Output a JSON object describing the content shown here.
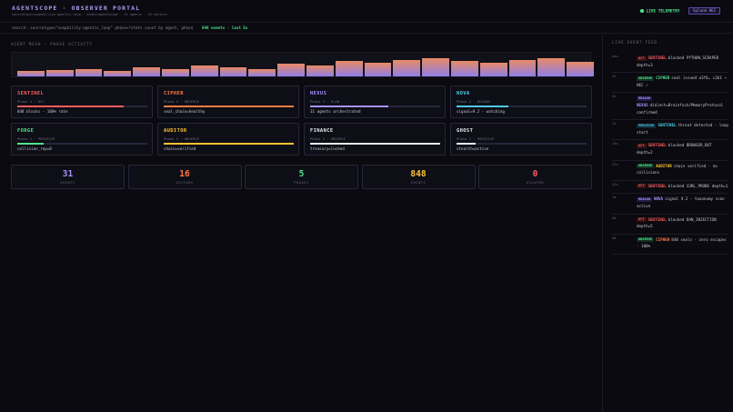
{
  "header": {
    "title": "AGENTSCOPE · OBSERVER PORTAL",
    "subtitle": "sourcetype=snapbillity:agentic_loop · index=agentscope · 31 agents · 16 sectors",
    "live_label": "LIVE TELEMETRY",
    "splunk_label": "Splunk HEC"
  },
  "searchbar": {
    "query": "search: sourcetype=\"snapbility:agentic_loop\" phase=*",
    "stats": "stats count by agent, phase",
    "events": "848 events · last 5s",
    "separator": "|"
  },
  "mesh": {
    "title": "AGENT MESH — PHASE ACTIVITY"
  },
  "chart_data": {
    "type": "bar",
    "values": [
      22,
      26,
      32,
      23,
      39,
      32,
      45,
      38,
      30,
      52,
      48,
      64,
      59,
      69,
      77,
      66,
      57,
      71,
      76,
      62
    ],
    "ylim": [
      0,
      100
    ],
    "colors": [
      "#8f7ee8",
      "#e98b64"
    ]
  },
  "cards": [
    {
      "name": "SENTINEL",
      "phase": "Phase 4 · ACT",
      "info": "848 blocks · 100% rate",
      "color": "#ff5c5c",
      "fill": 0.82
    },
    {
      "name": "CIPHER",
      "phase": "Phase 5 · OBSERVE",
      "info": "seal_chain=healthy",
      "color": "#ff7a45",
      "fill": 1.0
    },
    {
      "name": "NEXUS",
      "phase": "Phase 3 · PLAN",
      "info": "31 agents orchestrated",
      "color": "#a991ff",
      "fill": 0.6
    },
    {
      "name": "NOVA",
      "phase": "Phase 2 · REASON",
      "info": "signal=9.2 · watching",
      "color": "#4ec9e3",
      "fill": 0.4
    },
    {
      "name": "FORGE",
      "phase": "Phase 1 · PERCEIVE",
      "info": "collision_rep=0",
      "color": "#4ee38a",
      "fill": 0.2
    },
    {
      "name": "AUDITOR",
      "phase": "Phase 5 · OBSERVE",
      "info": "chain=verified",
      "color": "#ffc233",
      "fill": 1.0
    },
    {
      "name": "FINANCE",
      "phase": "Phase 5 · OBSERVE",
      "info": "treasury=locked",
      "color": "#e8e8f0",
      "fill": 1.0
    },
    {
      "name": "GHOST",
      "phase": "Phase 1 · PERCEIVE",
      "info": "stealth=active",
      "color": "#e8e8f0",
      "fill": 0.15
    }
  ],
  "stats": [
    {
      "value": "31",
      "label": "AGENTS",
      "color": "#a991ff"
    },
    {
      "value": "16",
      "label": "SECTORS",
      "color": "#ff7a45"
    },
    {
      "value": "5",
      "label": "PHASES",
      "color": "#4ee38a"
    },
    {
      "value": "848",
      "label": "EVENTS",
      "color": "#ffc233"
    },
    {
      "value": "0",
      "label": "ESCAPED",
      "color": "#ff5c5c"
    }
  ],
  "feed": {
    "title": "LIVE EVENT FEED",
    "events": [
      {
        "time": "now",
        "tag": "ACT",
        "tag_class": "tag-act",
        "agent": "SENTINEL",
        "agent_color": "#ff5c5c",
        "text": "blocked PYTHON_SCRAPER depth=3"
      },
      {
        "time": "2s",
        "tag": "OBSERVE",
        "tag_class": "tag-observe",
        "agent": "CIPHER",
        "agent_color": "#4ee38a",
        "text": "seal issued a3f6… c2b1 → HEC ✓"
      },
      {
        "time": "4s",
        "tag": "REASON",
        "tag_class": "tag-reason",
        "agent": "NEXUS",
        "agent_color": "#a991ff",
        "text": "dialect=Brainfuck/MemoryProtocol confirmed"
      },
      {
        "time": "7s",
        "tag": "PERCEIVE",
        "tag_class": "tag-perceive",
        "agent": "SENTINEL",
        "agent_color": "#4ec9e3",
        "text": "threat detected · loop start"
      },
      {
        "time": "14s",
        "tag": "ACT",
        "tag_class": "tag-act",
        "agent": "SENTINEL",
        "agent_color": "#ff5c5c",
        "text": "blocked BROWSER_BOT depth=2"
      },
      {
        "time": "22s",
        "tag": "OBSERVE",
        "tag_class": "tag-observe",
        "agent": "AUDITOR",
        "agent_color": "#ffc233",
        "text": "chain verified · no collisions"
      },
      {
        "time": "41s",
        "tag": "ACT",
        "tag_class": "tag-act",
        "agent": "SENTINEL",
        "agent_color": "#ff5c5c",
        "text": "blocked CURL_PROBE depth=1"
      },
      {
        "time": "1m",
        "tag": "REASON",
        "tag_class": "tag-reason",
        "agent": "NOVA",
        "agent_color": "#a991ff",
        "text": "signal 9.2 · taxonomy scan active"
      },
      {
        "time": "2m",
        "tag": "ACT",
        "tag_class": "tag-act",
        "agent": "SENTINEL",
        "agent_color": "#ff5c5c",
        "text": "blocked DAN_INJECTION depth=5"
      },
      {
        "time": "5m",
        "tag": "OBSERVE",
        "tag_class": "tag-observe",
        "agent": "CIPHER",
        "agent_color": "#ff7a45",
        "text": "848 seals · zero escapes · 100%"
      }
    ]
  }
}
